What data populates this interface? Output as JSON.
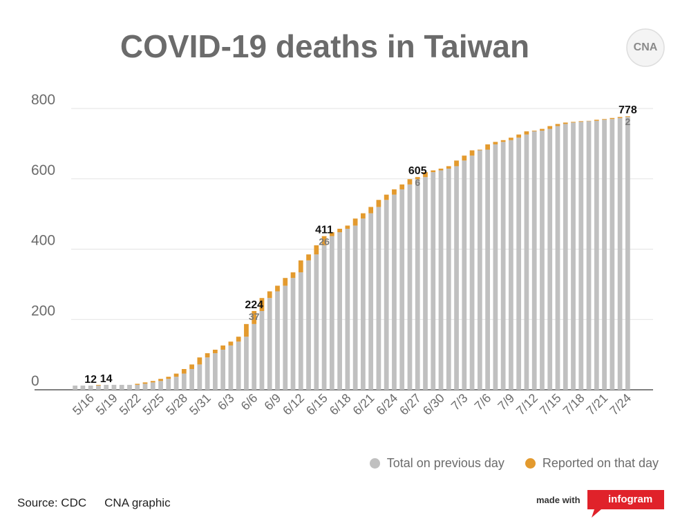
{
  "title": "COVID-19 deaths in Taiwan",
  "legend": {
    "total": "Total on previous day",
    "reported": "Reported on that day"
  },
  "source": {
    "label": "Source: CDC",
    "credit": "CNA graphic"
  },
  "made_with": "made with",
  "infogram": "infogram",
  "logo_text": "CNA",
  "colors": {
    "total": "#c0c0c0",
    "reported": "#e39a2e",
    "grid": "#e3e3e3",
    "axis": "#555555",
    "infogram": "#e0222a"
  },
  "chart_data": {
    "type": "bar",
    "stacked": true,
    "title": "COVID-19 deaths in Taiwan",
    "xlabel": "",
    "ylabel": "",
    "ylim": [
      0,
      800
    ],
    "yticks": [
      0,
      200,
      400,
      600,
      800
    ],
    "grid": true,
    "legend_position": "bottom-right",
    "categories": [
      "5/14",
      "5/15",
      "5/16",
      "5/17",
      "5/18",
      "5/19",
      "5/20",
      "5/21",
      "5/22",
      "5/23",
      "5/24",
      "5/25",
      "5/26",
      "5/27",
      "5/28",
      "5/29",
      "5/30",
      "5/31",
      "6/1",
      "6/2",
      "6/3",
      "6/4",
      "6/5",
      "6/6",
      "6/7",
      "6/8",
      "6/9",
      "6/10",
      "6/11",
      "6/12",
      "6/13",
      "6/14",
      "6/15",
      "6/16",
      "6/17",
      "6/18",
      "6/19",
      "6/20",
      "6/21",
      "6/22",
      "6/23",
      "6/24",
      "6/25",
      "6/26",
      "6/27",
      "6/28",
      "6/29",
      "6/30",
      "7/1",
      "7/2",
      "7/3",
      "7/4",
      "7/5",
      "7/6",
      "7/7",
      "7/8",
      "7/9",
      "7/10",
      "7/11",
      "7/12",
      "7/13",
      "7/14",
      "7/15",
      "7/16",
      "7/17",
      "7/18",
      "7/19",
      "7/20",
      "7/21",
      "7/22",
      "7/23",
      "7/24"
    ],
    "tick_labels": [
      "5/16",
      "5/19",
      "5/22",
      "5/25",
      "5/28",
      "5/31",
      "6/3",
      "6/6",
      "6/9",
      "6/12",
      "6/15",
      "6/18",
      "6/21",
      "6/24",
      "6/27",
      "6/30",
      "7/3",
      "7/6",
      "7/9",
      "7/12",
      "7/15",
      "7/18",
      "7/21",
      "7/24"
    ],
    "series": [
      {
        "name": "Total on previous day",
        "values": [
          12,
          12,
          12,
          12,
          14,
          14,
          14,
          14,
          14,
          17,
          21,
          25,
          31,
          37,
          46,
          59,
          72,
          92,
          104,
          114,
          126,
          137,
          151,
          187,
          224,
          261,
          280,
          296,
          318,
          334,
          368,
          385,
          411,
          437,
          448,
          458,
          467,
          487,
          502,
          520,
          540,
          555,
          570,
          584,
          599,
          605,
          619,
          624,
          629,
          636,
          652,
          666,
          681,
          683,
          698,
          705,
          710,
          717,
          726,
          735,
          737,
          742,
          750,
          756,
          760,
          762,
          764,
          765,
          768,
          770,
          773,
          776
        ]
      },
      {
        "name": "Reported on that day",
        "values": [
          0,
          0,
          0,
          2,
          0,
          0,
          0,
          0,
          3,
          4,
          4,
          6,
          6,
          9,
          13,
          13,
          20,
          12,
          10,
          12,
          11,
          14,
          36,
          37,
          37,
          19,
          16,
          22,
          16,
          34,
          17,
          26,
          26,
          11,
          10,
          9,
          20,
          15,
          18,
          20,
          15,
          15,
          14,
          15,
          6,
          14,
          5,
          5,
          7,
          16,
          14,
          15,
          2,
          15,
          7,
          5,
          7,
          9,
          9,
          2,
          5,
          8,
          6,
          4,
          2,
          2,
          1,
          3,
          2,
          3,
          3,
          2
        ]
      }
    ],
    "data_labels": [
      {
        "category": "5/16",
        "total": "12"
      },
      {
        "category": "5/18",
        "total": "14"
      },
      {
        "category": "6/6",
        "total": "224",
        "reported": "37"
      },
      {
        "category": "6/15",
        "total": "411",
        "reported": "26"
      },
      {
        "category": "6/27",
        "total": "605",
        "reported": "6"
      },
      {
        "category": "7/24",
        "total": "778",
        "reported": "2"
      }
    ]
  }
}
